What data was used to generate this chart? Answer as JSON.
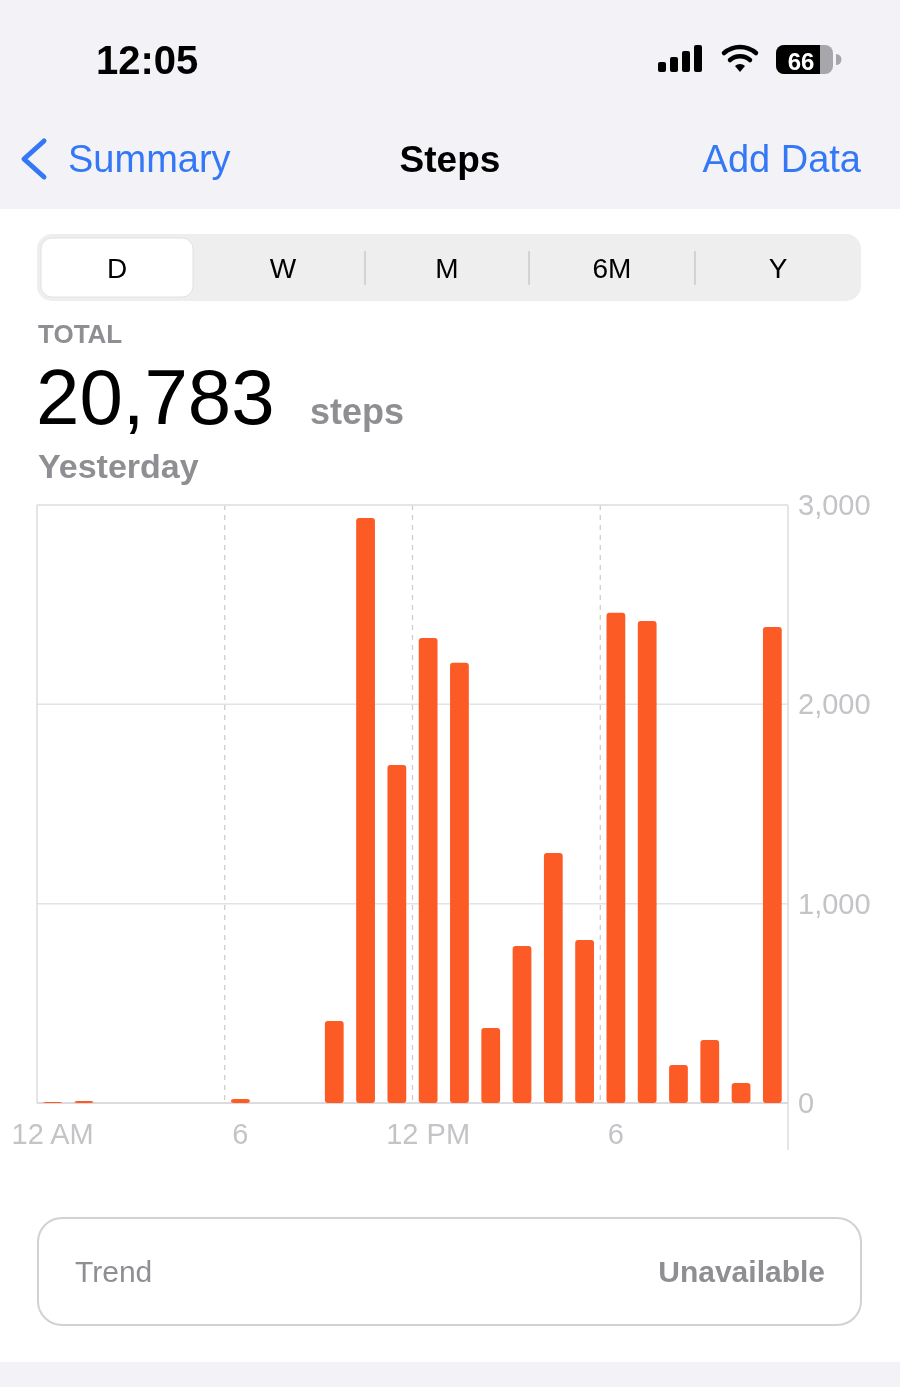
{
  "chart_data": {
    "type": "bar",
    "title": "Steps",
    "categories": [
      "12 AM",
      null,
      null,
      null,
      null,
      null,
      "6",
      null,
      null,
      null,
      null,
      null,
      "12 PM",
      null,
      null,
      null,
      null,
      null,
      "6",
      null,
      null,
      null,
      null,
      null
    ],
    "values": [
      5,
      10,
      null,
      null,
      null,
      null,
      20,
      null,
      null,
      411,
      2935,
      1696,
      2333,
      2208,
      376,
      788,
      1254,
      818,
      2459,
      2418,
      191,
      316,
      100,
      2388
    ],
    "color": "#fd5b26",
    "ylim": [
      0,
      3000
    ],
    "yticks": [
      0,
      {
        "value": 1000,
        "label": "1,000"
      },
      {
        "value": 2000,
        "label": "2,000"
      },
      {
        "value": 3000,
        "label": "3,000"
      }
    ],
    "grid": true,
    "annotations": [
      "12:05",
      "66",
      "Summary",
      "Add Data",
      "D",
      "W",
      "M",
      "6M",
      "Y",
      "TOTAL",
      "20,783",
      "steps",
      "Yesterday",
      "Trend",
      "Unavailable"
    ]
  }
}
